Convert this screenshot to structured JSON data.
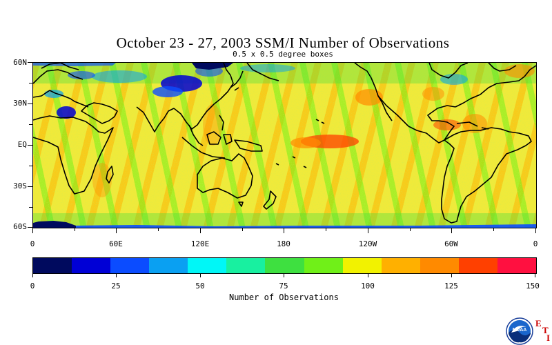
{
  "title": "October 23 - 27, 2003 SSM/I Number of Observations",
  "subtitle": "0.5 x 0.5 degree boxes",
  "lat_labels": [
    "60N",
    "30N",
    "EQ",
    "30S",
    "60S"
  ],
  "lon_labels": [
    "0",
    "60E",
    "120E",
    "180",
    "120W",
    "60W",
    "0"
  ],
  "colorbar": {
    "colors": [
      "#000a5e",
      "#0000d6",
      "#0b4cff",
      "#0aa0f2",
      "#00f7f7",
      "#18f0a0",
      "#3ee040",
      "#70f018",
      "#f2f200",
      "#ffb000",
      "#ff8a00",
      "#ff4000",
      "#ff1040"
    ],
    "tick_labels": [
      "0",
      "25",
      "50",
      "75",
      "100",
      "125",
      "150"
    ],
    "title": "Number of Observations"
  },
  "logo": {
    "name": "NOAA",
    "letters": [
      "E",
      "T",
      "I"
    ]
  }
}
